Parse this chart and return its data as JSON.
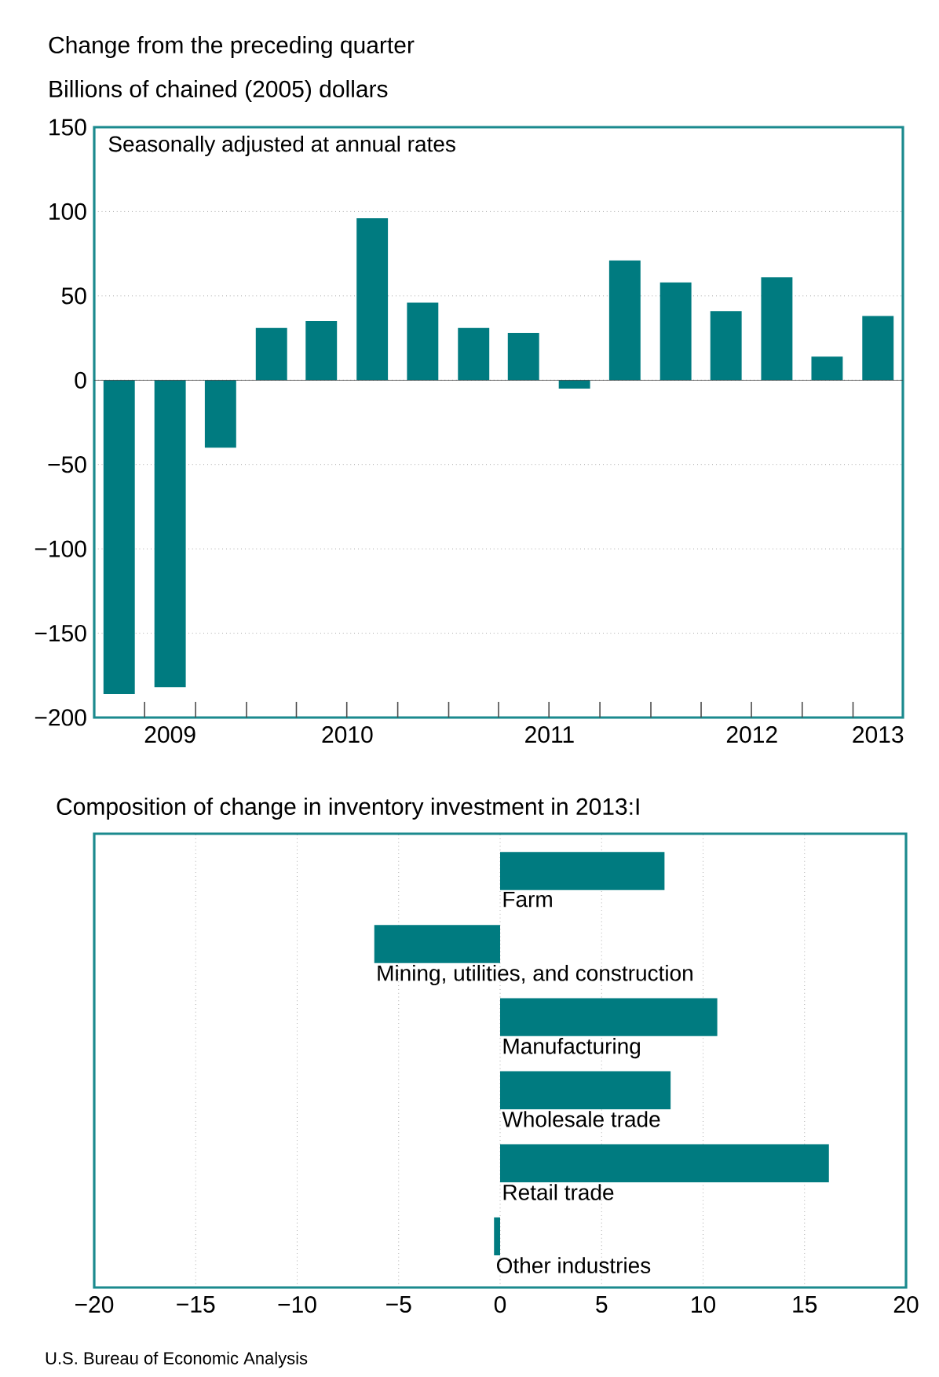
{
  "chart_data": [
    {
      "type": "bar",
      "title": "Change from the preceding quarter",
      "subtitle": "Billions of chained (2005) dollars",
      "annotations": [
        "Seasonally adjusted at annual rates"
      ],
      "x": [
        "2009-05-16",
        "2009-08-16",
        "2009-11-15",
        "2010-02-15",
        "2010-05-16",
        "2010-08-16",
        "2010-11-15",
        "2011-02-15",
        "2011-05-16",
        "2011-08-16",
        "2011-11-15",
        "2012-02-15",
        "2012-05-16",
        "2012-08-16",
        "2012-11-15",
        "2013-02-15"
      ],
      "values": [
        -186,
        -182,
        -40,
        31,
        35,
        96,
        46,
        31,
        28,
        -5,
        71,
        58,
        41,
        61,
        14,
        38
      ],
      "color": "#007b80",
      "xlim": [
        "2009-04-01",
        "2013-04-01"
      ],
      "xticks": [
        {
          "value": "2009-08-16",
          "label": "2009"
        },
        {
          "value": "2010-07-02",
          "label": "2010"
        },
        {
          "value": "2011-07-02",
          "label": "2011"
        },
        {
          "value": "2012-07-02",
          "label": "2012"
        },
        {
          "value": "2013-02-15",
          "label": "2013"
        },
        {
          "value": "2009-07-01",
          "label": null
        },
        {
          "value": "2009-10-01",
          "label": null
        },
        {
          "value": "2010-01-01",
          "label": null
        },
        {
          "value": "2010-04-01",
          "label": null
        },
        {
          "value": "2010-07-01",
          "label": null
        },
        {
          "value": "2010-10-01",
          "label": null
        },
        {
          "value": "2011-01-01",
          "label": null
        },
        {
          "value": "2011-04-01",
          "label": null
        },
        {
          "value": "2011-07-01",
          "label": null
        },
        {
          "value": "2011-10-01",
          "label": null
        },
        {
          "value": "2012-01-01",
          "label": null
        },
        {
          "value": "2012-04-01",
          "label": null
        },
        {
          "value": "2012-07-01",
          "label": null
        },
        {
          "value": "2012-10-01",
          "label": null
        },
        {
          "value": "2013-01-01",
          "label": null
        }
      ],
      "ylim": [
        -200,
        150
      ],
      "yticks": [
        {
          "value": -200,
          "label": "−200"
        },
        {
          "value": -150,
          "label": "−150"
        },
        {
          "value": -100,
          "label": "−100"
        },
        {
          "value": -50,
          "label": "−50"
        },
        0,
        50,
        100,
        150
      ],
      "grid": "y"
    },
    {
      "type": "bar",
      "orientation": "horizontal",
      "title": "Composition of change in inventory investment in 2013:I",
      "annotations": [
        "U.S. Bureau of Economic Analysis"
      ],
      "categories": [
        "Farm",
        "Mining, utilities, and construction",
        "Manufacturing",
        "Wholesale trade",
        "Retail trade",
        "Other industries"
      ],
      "values": [
        8.1,
        -6.2,
        10.7,
        8.4,
        16.2,
        -0.3
      ],
      "color": "#007b80",
      "xlim": [
        -20,
        20
      ],
      "xticks": [
        {
          "value": -20,
          "label": "−20"
        },
        {
          "value": -15,
          "label": "−15"
        },
        {
          "value": -10,
          "label": "−10"
        },
        {
          "value": -5,
          "label": "−5"
        },
        0,
        5,
        10,
        15,
        20
      ],
      "tick_labels": "x",
      "grid": "x"
    }
  ]
}
